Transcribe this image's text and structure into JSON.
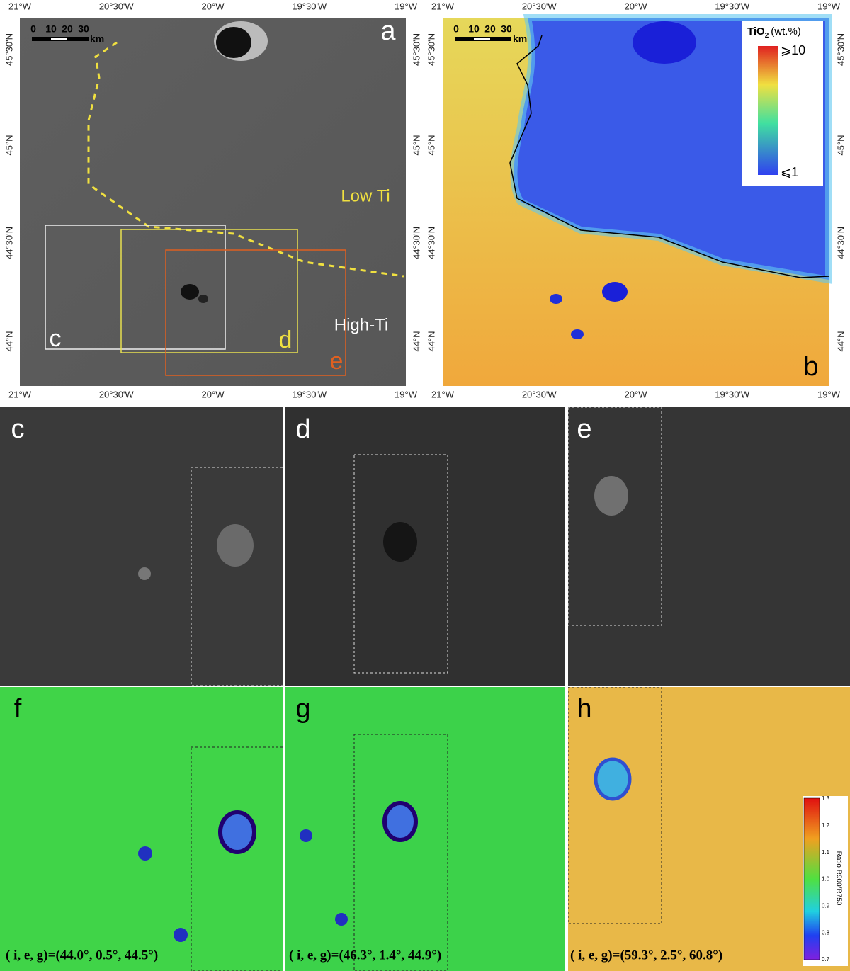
{
  "panel_a": {
    "label": "a",
    "lon": [
      "21°W",
      "20°30'W",
      "20°W",
      "19°30'W",
      "19°W"
    ],
    "lat": [
      "45°30'N",
      "45°N",
      "44°30'N",
      "44°N"
    ],
    "scale": {
      "ticks": [
        "0",
        "10",
        "20",
        "30"
      ],
      "unit": "km"
    },
    "low_ti": "Low Ti",
    "high_ti": "High-Ti",
    "boxes": [
      "c",
      "d",
      "e"
    ]
  },
  "panel_b": {
    "label": "b",
    "lon": [
      "21°W",
      "20°30'W",
      "20°W",
      "19°30'W",
      "19°W"
    ],
    "lat": [
      "45°30'N",
      "45°N",
      "44°30'N",
      "44°N"
    ],
    "scale": {
      "ticks": [
        "0",
        "10",
        "20",
        "30"
      ],
      "unit": "km"
    },
    "legend": {
      "title": "TiO",
      "sub": "2",
      "unit": "(wt.%)",
      "max": "⩾10",
      "min": "⩽1"
    }
  },
  "lower": [
    "c",
    "d",
    "e"
  ],
  "ratio": [
    {
      "label": "f",
      "geometry": "( i, e, g)=(44.0°, 0.5°, 44.5°)"
    },
    {
      "label": "g",
      "geometry": "( i, e, g)=(46.3°, 1.4°, 44.9°)"
    },
    {
      "label": "h",
      "geometry": "( i, e, g)=(59.3°, 2.5°, 60.8°)"
    }
  ],
  "colorbar": {
    "ticks": [
      "1.3",
      "1.2",
      "1.1",
      "1.0",
      "0.9",
      "0.8",
      "0.7"
    ],
    "label": "Ratio R900/R750"
  }
}
